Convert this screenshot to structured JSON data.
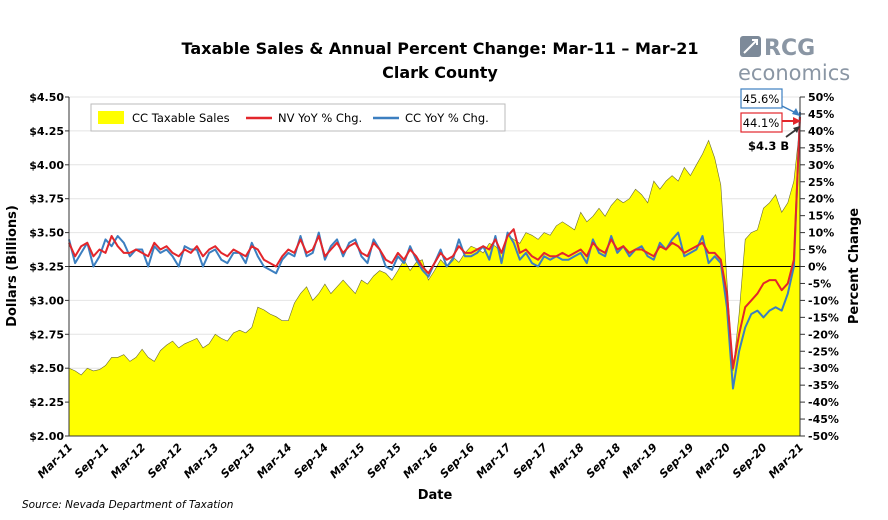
{
  "logo": {
    "top": "RCG",
    "bottom": "economics",
    "color": "#7d8a99"
  },
  "source": "Source: Nevada Department of Taxation",
  "chart_data": {
    "type": "line",
    "title": "Taxable Sales & Annual Percent Change: Mar-11 – Mar-21",
    "subtitle": "Clark County",
    "xlabel": "Date",
    "ylabel": "Dollars (Billions)",
    "y2label": "Percent Change",
    "ylim": [
      2.0,
      4.5
    ],
    "y2lim": [
      -50,
      50
    ],
    "grid": true,
    "legend_position": "top-left",
    "y_ticks": [
      "$2.00",
      "$2.25",
      "$2.50",
      "$2.75",
      "$3.00",
      "$3.25",
      "$3.50",
      "$3.75",
      "$4.00",
      "$4.25",
      "$4.50"
    ],
    "y2_ticks": [
      "-50%",
      "-45%",
      "-40%",
      "-35%",
      "-30%",
      "-25%",
      "-20%",
      "-15%",
      "-10%",
      "-5%",
      "0%",
      "5%",
      "10%",
      "15%",
      "20%",
      "25%",
      "30%",
      "35%",
      "40%",
      "45%",
      "50%"
    ],
    "x_ticks": [
      "Mar-11",
      "Sep-11",
      "Mar-12",
      "Sep-12",
      "Mar-13",
      "Sep-13",
      "Mar-14",
      "Sep-14",
      "Mar-15",
      "Sep-15",
      "Mar-16",
      "Sep-16",
      "Mar-17",
      "Sep-17",
      "Mar-18",
      "Sep-18",
      "Mar-19",
      "Sep-19",
      "Mar-20",
      "Sep-20",
      "Mar-21"
    ],
    "x_start": "Mar-11",
    "x_end": "Mar-21",
    "frequency": "monthly",
    "series": [
      {
        "name": "CC Taxable Sales",
        "type": "area",
        "axis": "left",
        "color": "#ffff00",
        "values": [
          2.5,
          2.48,
          2.45,
          2.5,
          2.48,
          2.49,
          2.52,
          2.58,
          2.58,
          2.6,
          2.55,
          2.58,
          2.64,
          2.58,
          2.55,
          2.63,
          2.67,
          2.7,
          2.65,
          2.68,
          2.7,
          2.72,
          2.65,
          2.68,
          2.75,
          2.72,
          2.7,
          2.76,
          2.78,
          2.76,
          2.8,
          2.95,
          2.93,
          2.9,
          2.88,
          2.85,
          2.85,
          2.98,
          3.05,
          3.1,
          3.0,
          3.05,
          3.12,
          3.05,
          3.1,
          3.15,
          3.1,
          3.05,
          3.15,
          3.12,
          3.18,
          3.22,
          3.2,
          3.15,
          3.22,
          3.3,
          3.22,
          3.28,
          3.3,
          3.15,
          3.22,
          3.3,
          3.25,
          3.32,
          3.28,
          3.35,
          3.4,
          3.38,
          3.35,
          3.42,
          3.4,
          3.35,
          3.48,
          3.45,
          3.42,
          3.5,
          3.48,
          3.45,
          3.5,
          3.48,
          3.55,
          3.58,
          3.55,
          3.52,
          3.65,
          3.58,
          3.62,
          3.68,
          3.62,
          3.7,
          3.75,
          3.72,
          3.75,
          3.82,
          3.78,
          3.72,
          3.88,
          3.82,
          3.88,
          3.92,
          3.88,
          3.98,
          3.92,
          4.0,
          4.08,
          4.18,
          4.05,
          3.85,
          3.15,
          2.48,
          2.9,
          3.45,
          3.5,
          3.52,
          3.68,
          3.72,
          3.78,
          3.65,
          3.72,
          3.88,
          4.3
        ]
      },
      {
        "name": "NV YoY % Chg.",
        "type": "line",
        "axis": "right",
        "color": "#e3262b",
        "values": [
          7,
          3,
          6,
          7,
          3,
          5,
          4,
          9,
          6,
          4,
          4,
          5,
          4,
          3,
          7,
          5,
          6,
          4,
          3,
          5,
          4,
          6,
          3,
          5,
          6,
          4,
          3,
          5,
          4,
          3,
          6,
          5,
          2,
          1,
          0,
          3,
          5,
          4,
          8,
          4,
          5,
          9,
          3,
          5,
          7,
          4,
          6,
          7,
          4,
          3,
          7,
          5,
          2,
          1,
          4,
          2,
          5,
          3,
          0,
          -2,
          1,
          4,
          2,
          3,
          6,
          4,
          4,
          5,
          6,
          5,
          8,
          4,
          9,
          11,
          4,
          5,
          3,
          2,
          4,
          3,
          3,
          4,
          3,
          4,
          5,
          3,
          7,
          5,
          4,
          8,
          5,
          6,
          4,
          5,
          5,
          4,
          3,
          6,
          5,
          7,
          6,
          4,
          5,
          6,
          7,
          4,
          4,
          2,
          -8,
          -30,
          -20,
          -12,
          -10,
          -8,
          -5,
          -4,
          -4,
          -7,
          -5,
          2,
          44.1
        ]
      },
      {
        "name": "CC YoY % Chg.",
        "type": "line",
        "axis": "right",
        "color": "#3c7fc0",
        "values": [
          8,
          1,
          4,
          7,
          0,
          3,
          8,
          6,
          9,
          7,
          3,
          5,
          5,
          0,
          6,
          4,
          5,
          3,
          0,
          6,
          5,
          5,
          0,
          4,
          5,
          2,
          1,
          4,
          4,
          1,
          7,
          3,
          0,
          -1,
          -2,
          2,
          4,
          3,
          9,
          3,
          4,
          10,
          2,
          6,
          8,
          3,
          7,
          8,
          3,
          1,
          8,
          5,
          0,
          -1,
          3,
          1,
          6,
          2,
          -1,
          -3,
          1,
          5,
          0,
          2,
          8,
          3,
          3,
          4,
          6,
          2,
          9,
          1,
          10,
          7,
          2,
          4,
          1,
          0,
          3,
          2,
          3,
          2,
          2,
          3,
          4,
          1,
          8,
          4,
          3,
          9,
          4,
          6,
          3,
          5,
          6,
          3,
          2,
          7,
          5,
          8,
          10,
          3,
          4,
          5,
          9,
          1,
          3,
          1,
          -12,
          -36,
          -25,
          -18,
          -14,
          -13,
          -15,
          -13,
          -12,
          -13,
          -8,
          0,
          45.6
        ]
      }
    ],
    "annotations": [
      {
        "text": "45.6%",
        "color": "#3c7fc0"
      },
      {
        "text": "44.1%",
        "color": "#e3262b"
      },
      {
        "text": "$4.3 B",
        "color": "#333333"
      }
    ]
  }
}
